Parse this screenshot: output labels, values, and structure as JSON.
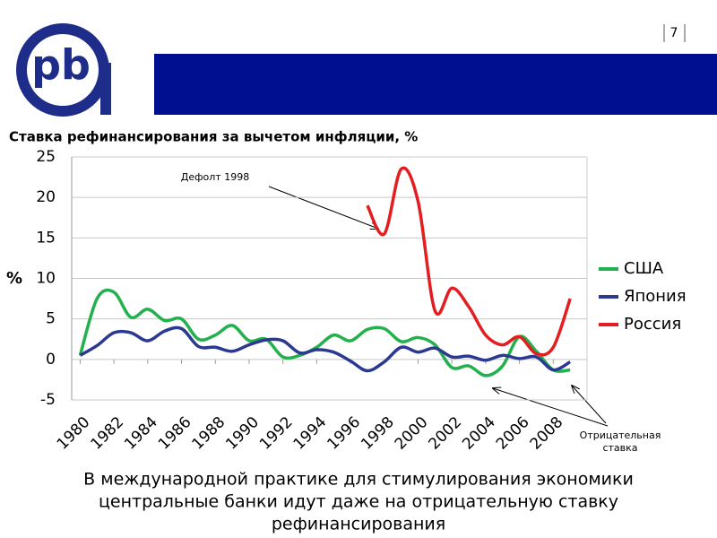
{
  "page_number": "7",
  "chart_data": {
    "type": "line",
    "title": "Ставка рефинансирования за вычетом инфляции, %",
    "y_label": "%",
    "x": [
      1980,
      1981,
      1982,
      1983,
      1984,
      1985,
      1986,
      1987,
      1988,
      1989,
      1990,
      1991,
      1992,
      1993,
      1994,
      1995,
      1996,
      1997,
      1998,
      1999,
      2000,
      2001,
      2002,
      2003,
      2004,
      2005,
      2006,
      2007,
      2008,
      2009
    ],
    "series": [
      {
        "name": "США",
        "color": "#22b14c",
        "values": [
          0.5,
          7.5,
          8.3,
          5.2,
          6.2,
          4.8,
          5.0,
          2.5,
          3.0,
          4.2,
          2.3,
          2.5,
          0.3,
          0.5,
          1.5,
          3.0,
          2.3,
          3.7,
          3.8,
          2.2,
          2.7,
          1.8,
          -1.0,
          -0.8,
          -2.0,
          -0.8,
          2.8,
          1.0,
          -1.3,
          -1.3
        ]
      },
      {
        "name": "Япония",
        "color": "#2b3990",
        "values": [
          0.5,
          1.7,
          3.3,
          3.3,
          2.3,
          3.5,
          3.8,
          1.6,
          1.5,
          1.0,
          1.8,
          2.4,
          2.3,
          0.8,
          1.2,
          0.9,
          -0.2,
          -1.4,
          -0.3,
          1.5,
          0.9,
          1.4,
          0.3,
          0.4,
          -0.1,
          0.5,
          0.1,
          0.3,
          -1.3,
          -0.3
        ]
      },
      {
        "name": "Россия",
        "color": "#e41e20",
        "values": [
          null,
          null,
          null,
          null,
          null,
          null,
          null,
          null,
          null,
          null,
          null,
          null,
          null,
          null,
          null,
          null,
          null,
          19.0,
          15.5,
          23.5,
          19.5,
          6.0,
          8.8,
          6.5,
          3.0,
          1.8,
          2.8,
          0.7,
          1.5,
          7.5
        ]
      }
    ],
    "xlim": [
      1979.5,
      2010
    ],
    "xticks": [
      1980,
      1982,
      1984,
      1986,
      1988,
      1990,
      1992,
      1994,
      1996,
      1998,
      2000,
      2002,
      2004,
      2006,
      2008
    ],
    "ylim": [
      -5,
      25
    ],
    "yticks": [
      25,
      20,
      15,
      10,
      5,
      0,
      -5
    ],
    "grid": true,
    "legend": "right",
    "annotations": [
      "Дефолт 1998",
      "Отрицательная",
      "ставка"
    ]
  },
  "caption": [
    "В международной практике для стимулирования экономики",
    "центральные банки идут даже на отрицательную ставку",
    "рефинансирования"
  ]
}
